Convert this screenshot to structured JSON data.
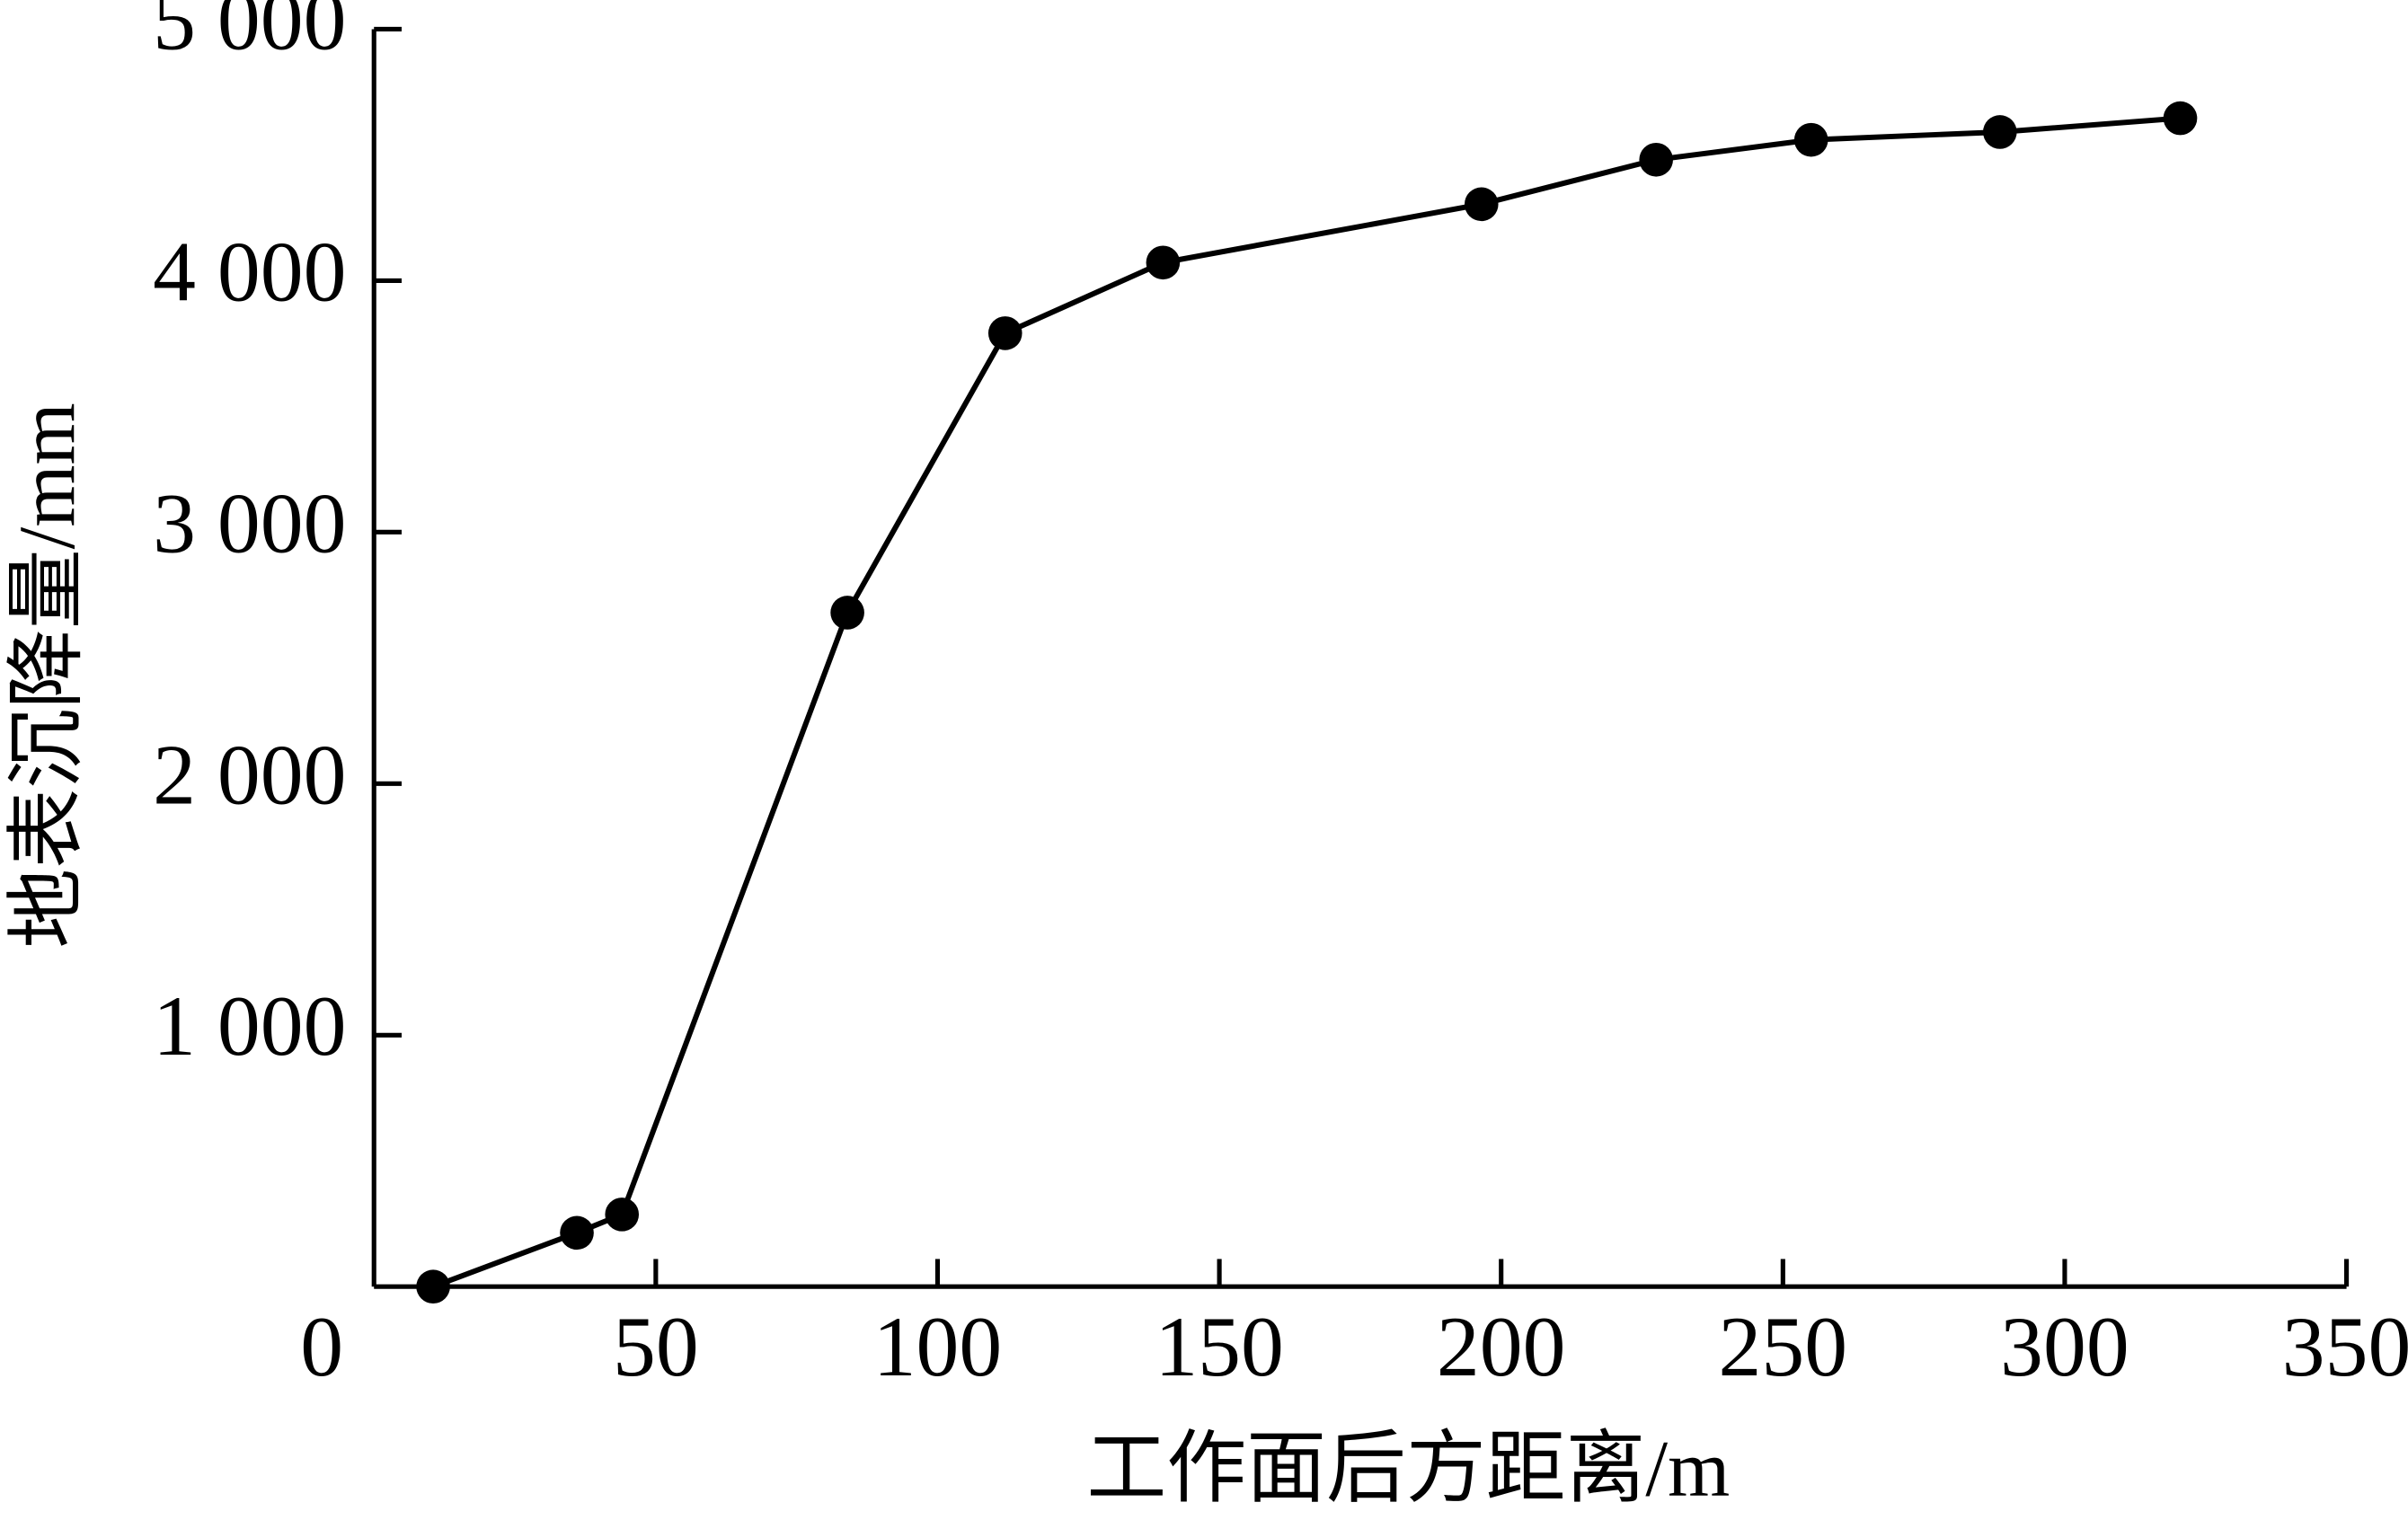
{
  "chart_data": {
    "type": "line",
    "x_label": "工作面后方距离/m",
    "y_label": "地表沉降量/mm",
    "x": [
      10.5,
      36,
      44,
      84,
      112,
      140,
      196.5,
      227.5,
      255,
      288.5,
      320.5
    ],
    "series": [
      {
        "color": "#000000",
        "values": [
          0,
          214,
          287,
          2680,
          3791,
          4072,
          4304,
          4481,
          4560,
          4591,
          4646
        ]
      }
    ],
    "xlim": [
      0,
      350
    ],
    "xticks": [
      0,
      50,
      100,
      150,
      200,
      250,
      300,
      350
    ],
    "ylim": [
      0,
      5000
    ],
    "yticks": [
      {
        "value": 1000,
        "label": "1 000"
      },
      {
        "value": 2000,
        "label": "2 000"
      },
      {
        "value": 3000,
        "label": "3 000"
      },
      {
        "value": 4000,
        "label": "4 000"
      },
      {
        "value": 5000,
        "label": "5 000"
      }
    ],
    "grid": false
  }
}
